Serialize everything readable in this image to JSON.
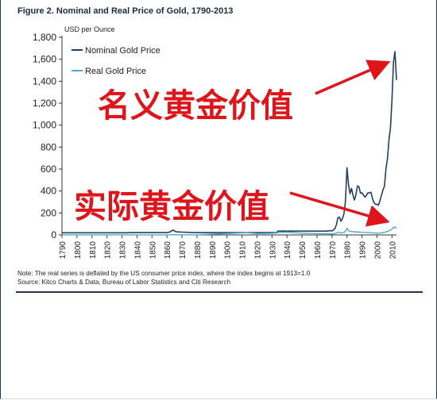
{
  "figure": {
    "title": "Figure 2. Nominal and Real Price of Gold, 1790-2013",
    "note": "Note: The real series is deflated by the US consumer price index, where the index begins at 1913=1.0",
    "source": "Source: Kitco Charts & Data, Bureau of Labor Statistics and Citi Research"
  },
  "annotations": {
    "nominal": "名义黄金价值",
    "real": "实际黄金价值",
    "color": "#e0141b"
  },
  "chart_data": {
    "type": "line",
    "title": "Figure 2. Nominal and Real Price of Gold, 1790-2013",
    "ylabel": "USD per Ounce",
    "xlim": [
      1790,
      2013
    ],
    "ylim": [
      0,
      1800
    ],
    "yticks": [
      0,
      200,
      400,
      600,
      800,
      1000,
      1200,
      1400,
      1600,
      1800
    ],
    "ytick_labels": [
      "0",
      "200",
      "400",
      "600",
      "800",
      "1,000",
      "1,200",
      "1,400",
      "1,600",
      "1,800"
    ],
    "xticks": [
      1790,
      1800,
      1810,
      1820,
      1830,
      1840,
      1850,
      1860,
      1870,
      1880,
      1890,
      1900,
      1910,
      1920,
      1930,
      1940,
      1950,
      1960,
      1970,
      1980,
      1990,
      2000,
      2010
    ],
    "legend_position": "top-left",
    "grid": false,
    "series": [
      {
        "name": "Nominal Gold Price",
        "color": "#243f60",
        "x": [
          1790,
          1834,
          1835,
          1860,
          1862,
          1864,
          1866,
          1870,
          1879,
          1880,
          1933,
          1934,
          1967,
          1968,
          1970,
          1972,
          1973,
          1974,
          1975,
          1976,
          1977,
          1978,
          1979,
          1980,
          1981,
          1982,
          1983,
          1984,
          1985,
          1986,
          1987,
          1988,
          1989,
          1990,
          1991,
          1992,
          1993,
          1994,
          1995,
          1996,
          1997,
          1998,
          1999,
          2000,
          2001,
          2002,
          2003,
          2004,
          2005,
          2006,
          2007,
          2008,
          2009,
          2010,
          2011,
          2012,
          2013
        ],
        "y": [
          19.5,
          19.5,
          20.7,
          20.7,
          27,
          45,
          28,
          25,
          20.7,
          20.7,
          20.7,
          35,
          35,
          39,
          36,
          58,
          97,
          159,
          161,
          125,
          148,
          193,
          307,
          612,
          460,
          376,
          424,
          361,
          317,
          368,
          447,
          437,
          381,
          384,
          362,
          344,
          360,
          384,
          384,
          388,
          331,
          294,
          279,
          279,
          271,
          310,
          363,
          410,
          445,
          604,
          697,
          872,
          972,
          1225,
          1572,
          1669,
          1411
        ]
      },
      {
        "name": "Real Gold Price",
        "color": "#4bacc6",
        "x": [
          1790,
          1860,
          1862,
          1864,
          1866,
          1870,
          1880,
          1913,
          1918,
          1920,
          1930,
          1933,
          1934,
          1940,
          1950,
          1960,
          1967,
          1970,
          1973,
          1974,
          1975,
          1976,
          1977,
          1978,
          1979,
          1980,
          1981,
          1982,
          1985,
          1990,
          1995,
          2000,
          2001,
          2002,
          2003,
          2005,
          2007,
          2008,
          2009,
          2010,
          2011,
          2012,
          2013
        ],
        "y": [
          1,
          1,
          1.5,
          2,
          1.5,
          1.2,
          1,
          20,
          15,
          12,
          15,
          18,
          21,
          25,
          16,
          12,
          10,
          9,
          15,
          26,
          24,
          18,
          20,
          23,
          34,
          61,
          42,
          32,
          29,
          24,
          21,
          16,
          15,
          17,
          19,
          24,
          31,
          40,
          44,
          53,
          68,
          71,
          60
        ]
      }
    ]
  }
}
